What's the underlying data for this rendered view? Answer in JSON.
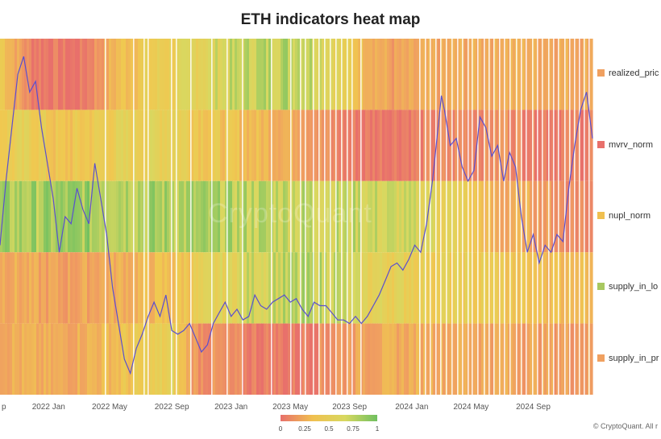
{
  "chart_data": {
    "type": "heatmap",
    "title": "ETH indicators heat map",
    "rows": [
      {
        "name": "realized_pric",
        "legend_color": "#f0a060",
        "segments": [
          [
            0,
            0.55
          ],
          [
            0.05,
            0.1
          ],
          [
            0.13,
            0.0
          ],
          [
            0.2,
            0.45
          ],
          [
            0.29,
            0.6
          ],
          [
            0.38,
            0.75
          ],
          [
            0.43,
            0.8
          ],
          [
            0.5,
            0.85
          ],
          [
            0.55,
            0.75
          ],
          [
            0.6,
            0.5
          ],
          [
            0.66,
            0.25
          ],
          [
            0.85,
            0.35
          ],
          [
            1.0,
            0.3
          ]
        ]
      },
      {
        "name": "mvrv_norm",
        "legend_color": "#e8706b",
        "segments": [
          [
            0,
            0.55
          ],
          [
            0.05,
            0.6
          ],
          [
            0.1,
            0.45
          ],
          [
            0.2,
            0.6
          ],
          [
            0.29,
            0.65
          ],
          [
            0.33,
            0.55
          ],
          [
            0.4,
            0.45
          ],
          [
            0.5,
            0.35
          ],
          [
            0.55,
            0.15
          ],
          [
            0.6,
            0.05
          ],
          [
            0.72,
            0.1
          ],
          [
            0.85,
            0.2
          ],
          [
            0.9,
            0.1
          ],
          [
            1.0,
            0.1
          ]
        ]
      },
      {
        "name": "nupl_norm",
        "legend_color": "#f0c050",
        "segments": [
          [
            0,
            0.85
          ],
          [
            0.15,
            0.88
          ],
          [
            0.3,
            0.85
          ],
          [
            0.4,
            0.82
          ],
          [
            0.5,
            0.8
          ],
          [
            0.6,
            0.78
          ],
          [
            0.72,
            0.7
          ],
          [
            0.78,
            0.55
          ],
          [
            0.84,
            0.3
          ],
          [
            0.88,
            0.35
          ],
          [
            0.95,
            0.15
          ],
          [
            1.0,
            0.15
          ]
        ]
      },
      {
        "name": "supply_in_lo",
        "legend_color": "#a8c860",
        "segments": [
          [
            0,
            0.35
          ],
          [
            0.1,
            0.25
          ],
          [
            0.2,
            0.35
          ],
          [
            0.29,
            0.45
          ],
          [
            0.35,
            0.6
          ],
          [
            0.42,
            0.75
          ],
          [
            0.5,
            0.8
          ],
          [
            0.56,
            0.8
          ],
          [
            0.61,
            0.65
          ],
          [
            0.72,
            0.6
          ],
          [
            0.85,
            0.5
          ],
          [
            0.9,
            0.45
          ],
          [
            1.0,
            0.45
          ]
        ]
      },
      {
        "name": "supply_in_pr",
        "legend_color": "#f0a060",
        "segments": [
          [
            0,
            0.35
          ],
          [
            0.1,
            0.3
          ],
          [
            0.2,
            0.45
          ],
          [
            0.29,
            0.6
          ],
          [
            0.33,
            0.2
          ],
          [
            0.4,
            0.1
          ],
          [
            0.5,
            0.05
          ],
          [
            0.61,
            0.3
          ],
          [
            0.72,
            0.35
          ],
          [
            0.85,
            0.3
          ],
          [
            0.95,
            0.25
          ],
          [
            1.0,
            0.25
          ]
        ]
      }
    ],
    "x_ticks": [
      "p",
      "2022 Jan",
      "2022 May",
      "2022 Sep",
      "2023 Jan",
      "2023 May",
      "2023 Sep",
      "2024 Jan",
      "2024 May",
      "2024 Sep"
    ],
    "x_tick_positions": [
      0.0,
      0.082,
      0.185,
      0.29,
      0.39,
      0.49,
      0.59,
      0.695,
      0.795,
      0.9
    ],
    "colorbar": {
      "labels": [
        "0",
        "0.25",
        "0.5",
        "0.75",
        "1"
      ],
      "range": [
        0,
        1
      ]
    },
    "price_line": [
      [
        0.0,
        0.58
      ],
      [
        0.01,
        0.4
      ],
      [
        0.02,
        0.25
      ],
      [
        0.03,
        0.1
      ],
      [
        0.04,
        0.05
      ],
      [
        0.05,
        0.15
      ],
      [
        0.06,
        0.12
      ],
      [
        0.07,
        0.25
      ],
      [
        0.08,
        0.35
      ],
      [
        0.09,
        0.45
      ],
      [
        0.1,
        0.6
      ],
      [
        0.11,
        0.5
      ],
      [
        0.12,
        0.52
      ],
      [
        0.13,
        0.42
      ],
      [
        0.14,
        0.48
      ],
      [
        0.15,
        0.52
      ],
      [
        0.16,
        0.35
      ],
      [
        0.17,
        0.45
      ],
      [
        0.18,
        0.55
      ],
      [
        0.19,
        0.7
      ],
      [
        0.2,
        0.8
      ],
      [
        0.21,
        0.9
      ],
      [
        0.22,
        0.94
      ],
      [
        0.23,
        0.87
      ],
      [
        0.24,
        0.83
      ],
      [
        0.25,
        0.78
      ],
      [
        0.26,
        0.74
      ],
      [
        0.27,
        0.78
      ],
      [
        0.28,
        0.72
      ],
      [
        0.29,
        0.82
      ],
      [
        0.3,
        0.83
      ],
      [
        0.31,
        0.82
      ],
      [
        0.32,
        0.8
      ],
      [
        0.33,
        0.84
      ],
      [
        0.34,
        0.88
      ],
      [
        0.35,
        0.86
      ],
      [
        0.36,
        0.8
      ],
      [
        0.37,
        0.77
      ],
      [
        0.38,
        0.74
      ],
      [
        0.39,
        0.78
      ],
      [
        0.4,
        0.76
      ],
      [
        0.41,
        0.79
      ],
      [
        0.42,
        0.78
      ],
      [
        0.43,
        0.72
      ],
      [
        0.44,
        0.75
      ],
      [
        0.45,
        0.76
      ],
      [
        0.46,
        0.74
      ],
      [
        0.47,
        0.73
      ],
      [
        0.48,
        0.72
      ],
      [
        0.49,
        0.74
      ],
      [
        0.5,
        0.73
      ],
      [
        0.51,
        0.76
      ],
      [
        0.52,
        0.78
      ],
      [
        0.53,
        0.74
      ],
      [
        0.54,
        0.75
      ],
      [
        0.55,
        0.75
      ],
      [
        0.56,
        0.77
      ],
      [
        0.57,
        0.79
      ],
      [
        0.58,
        0.79
      ],
      [
        0.59,
        0.8
      ],
      [
        0.6,
        0.78
      ],
      [
        0.61,
        0.8
      ],
      [
        0.62,
        0.78
      ],
      [
        0.63,
        0.75
      ],
      [
        0.64,
        0.72
      ],
      [
        0.65,
        0.68
      ],
      [
        0.66,
        0.64
      ],
      [
        0.67,
        0.63
      ],
      [
        0.68,
        0.65
      ],
      [
        0.69,
        0.62
      ],
      [
        0.7,
        0.58
      ],
      [
        0.71,
        0.6
      ],
      [
        0.72,
        0.52
      ],
      [
        0.73,
        0.4
      ],
      [
        0.74,
        0.24
      ],
      [
        0.745,
        0.16
      ],
      [
        0.75,
        0.2
      ],
      [
        0.76,
        0.3
      ],
      [
        0.77,
        0.28
      ],
      [
        0.78,
        0.36
      ],
      [
        0.79,
        0.4
      ],
      [
        0.8,
        0.37
      ],
      [
        0.81,
        0.22
      ],
      [
        0.82,
        0.25
      ],
      [
        0.83,
        0.33
      ],
      [
        0.84,
        0.3
      ],
      [
        0.85,
        0.4
      ],
      [
        0.86,
        0.32
      ],
      [
        0.87,
        0.36
      ],
      [
        0.88,
        0.5
      ],
      [
        0.89,
        0.6
      ],
      [
        0.9,
        0.55
      ],
      [
        0.91,
        0.63
      ],
      [
        0.92,
        0.58
      ],
      [
        0.93,
        0.6
      ],
      [
        0.94,
        0.55
      ],
      [
        0.95,
        0.57
      ],
      [
        0.96,
        0.42
      ],
      [
        0.97,
        0.3
      ],
      [
        0.98,
        0.2
      ],
      [
        0.99,
        0.15
      ],
      [
        1.0,
        0.28
      ]
    ],
    "price_line_units": "fraction of plot height from top (price axis not printed)"
  },
  "watermark": "CryptoQuant",
  "credit": "© CryptoQuant. All r"
}
